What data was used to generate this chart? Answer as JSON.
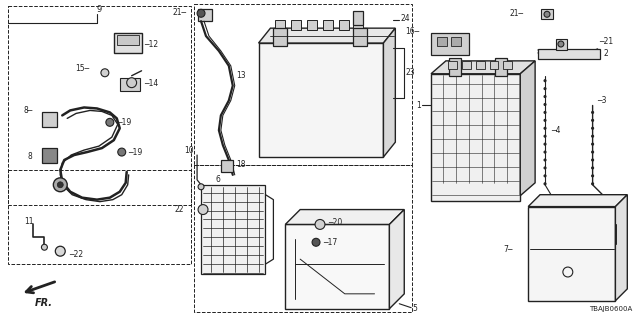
{
  "bg_color": "#ffffff",
  "line_color": "#222222",
  "ref_code": "TBAJB0600A"
}
